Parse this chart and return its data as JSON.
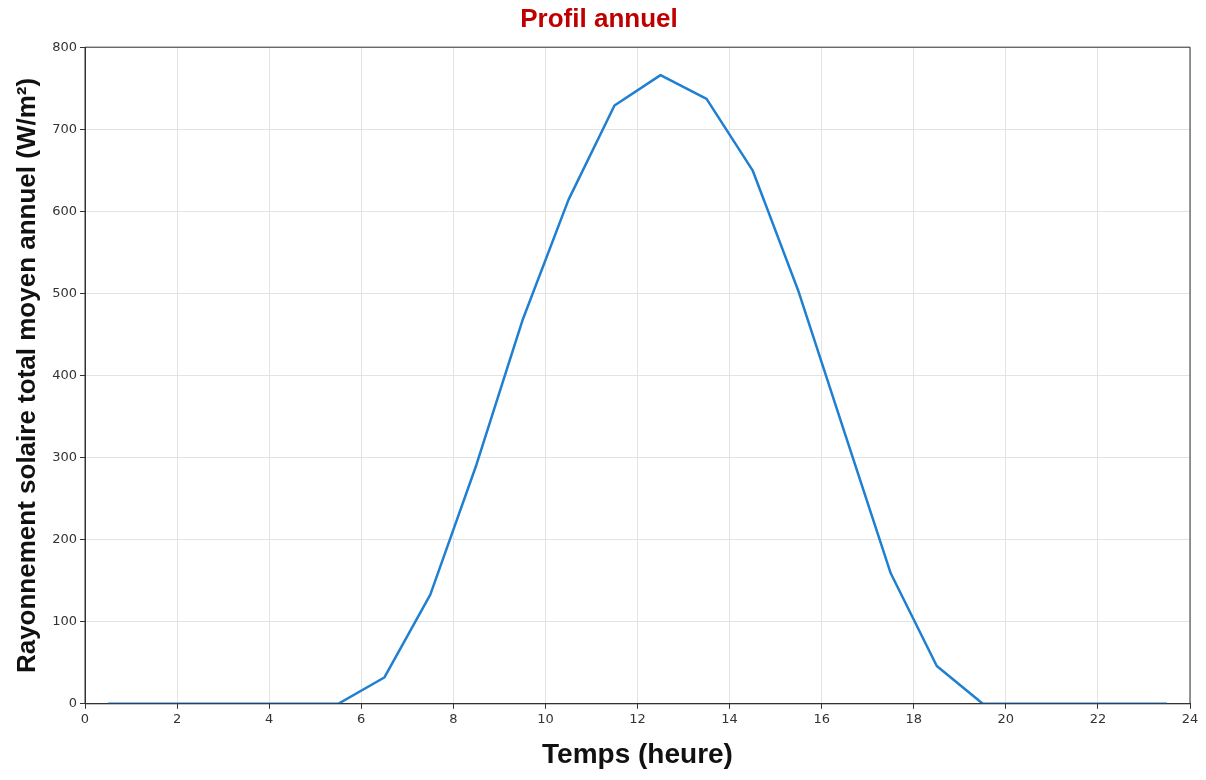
{
  "chart_data": {
    "type": "line",
    "title": "Profil annuel",
    "xlabel": "Temps (heure)",
    "ylabel": "Rayonnement solaire total moyen annuel (W/m²)",
    "x": [
      0.5,
      1.5,
      2.5,
      3.5,
      4.5,
      5.5,
      6.5,
      7.5,
      8.5,
      9.5,
      10.5,
      11.5,
      12.5,
      13.5,
      14.5,
      15.5,
      16.5,
      17.5,
      18.5,
      19.5,
      20.5,
      21.5,
      22.5,
      23.5
    ],
    "series": [
      {
        "color": "#1f7fd0",
        "values": [
          0,
          0,
          0,
          0,
          0,
          0,
          32,
          133,
          291,
          467,
          614,
          729,
          766,
          737,
          650,
          502,
          330,
          159,
          46,
          0,
          0,
          0,
          0,
          0
        ]
      }
    ],
    "xlim": [
      0,
      24
    ],
    "xticks": [
      0,
      2,
      4,
      6,
      8,
      10,
      12,
      14,
      16,
      18,
      20,
      22,
      24
    ],
    "ylim": [
      0,
      800
    ],
    "yticks": [
      0,
      100,
      200,
      300,
      400,
      500,
      600,
      700,
      800
    ],
    "grid": true,
    "legend": false,
    "marker": "none",
    "line_style": "solid"
  }
}
